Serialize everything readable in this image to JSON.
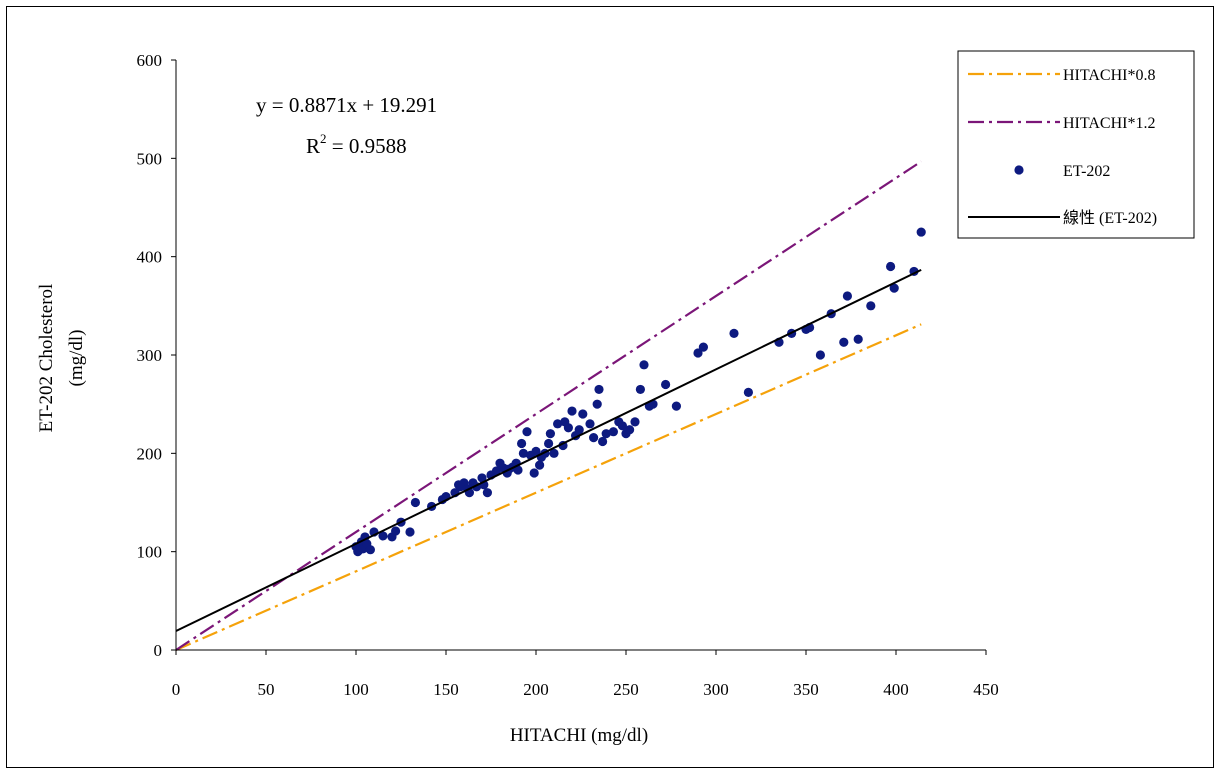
{
  "chart_data": {
    "type": "scatter",
    "title": "",
    "xlabel": "HITACHI (mg/dl)",
    "ylabel_line1": "ET-202 Cholesterol",
    "ylabel_line2": "(mg/dl)",
    "xlim": [
      0,
      450
    ],
    "ylim": [
      0,
      600
    ],
    "x_ticks": [
      0,
      50,
      100,
      150,
      200,
      250,
      300,
      350,
      400,
      450
    ],
    "y_ticks": [
      0,
      100,
      200,
      300,
      400,
      500,
      600
    ],
    "grid": false,
    "legend_position": "top-right",
    "equation": "y = 0.8871x + 19.291",
    "r_squared_prefix": "R",
    "r_squared_exp": "2",
    "r_squared_value": " = 0.9588",
    "series": [
      {
        "name": "HITACHI*0.8",
        "kind": "line",
        "style": "dash-dot",
        "color": "#f5a20a",
        "slope": 0.8,
        "intercept": 0,
        "x_range": [
          0,
          414
        ]
      },
      {
        "name": "HITACHI*1.2",
        "kind": "line",
        "style": "dash-dot",
        "color": "#7b1678",
        "slope": 1.2,
        "intercept": 0,
        "x_range": [
          0,
          414
        ]
      },
      {
        "name": "ET-202",
        "kind": "scatter",
        "color": "#0d1a80",
        "points": [
          [
            100,
            105
          ],
          [
            101,
            100
          ],
          [
            102,
            102
          ],
          [
            103,
            110
          ],
          [
            104,
            103
          ],
          [
            105,
            115
          ],
          [
            106,
            108
          ],
          [
            108,
            102
          ],
          [
            110,
            120
          ],
          [
            115,
            116
          ],
          [
            120,
            115
          ],
          [
            122,
            121
          ],
          [
            125,
            130
          ],
          [
            130,
            120
          ],
          [
            133,
            150
          ],
          [
            142,
            146
          ],
          [
            148,
            153
          ],
          [
            150,
            156
          ],
          [
            155,
            160
          ],
          [
            157,
            168
          ],
          [
            158,
            166
          ],
          [
            160,
            170
          ],
          [
            162,
            164
          ],
          [
            163,
            160
          ],
          [
            165,
            170
          ],
          [
            167,
            166
          ],
          [
            170,
            175
          ],
          [
            171,
            168
          ],
          [
            173,
            160
          ],
          [
            175,
            178
          ],
          [
            178,
            182
          ],
          [
            180,
            190
          ],
          [
            182,
            185
          ],
          [
            184,
            180
          ],
          [
            185,
            184
          ],
          [
            187,
            186
          ],
          [
            189,
            190
          ],
          [
            190,
            183
          ],
          [
            192,
            210
          ],
          [
            193,
            200
          ],
          [
            195,
            222
          ],
          [
            197,
            198
          ],
          [
            199,
            180
          ],
          [
            200,
            202
          ],
          [
            202,
            188
          ],
          [
            203,
            196
          ],
          [
            205,
            200
          ],
          [
            207,
            210
          ],
          [
            208,
            220
          ],
          [
            210,
            200
          ],
          [
            212,
            230
          ],
          [
            215,
            208
          ],
          [
            216,
            232
          ],
          [
            218,
            226
          ],
          [
            220,
            243
          ],
          [
            222,
            218
          ],
          [
            224,
            224
          ],
          [
            226,
            240
          ],
          [
            230,
            230
          ],
          [
            232,
            216
          ],
          [
            234,
            250
          ],
          [
            235,
            265
          ],
          [
            237,
            212
          ],
          [
            239,
            220
          ],
          [
            243,
            222
          ],
          [
            246,
            232
          ],
          [
            248,
            228
          ],
          [
            250,
            220
          ],
          [
            252,
            224
          ],
          [
            255,
            232
          ],
          [
            258,
            265
          ],
          [
            260,
            290
          ],
          [
            263,
            248
          ],
          [
            265,
            250
          ],
          [
            272,
            270
          ],
          [
            278,
            248
          ],
          [
            290,
            302
          ],
          [
            293,
            308
          ],
          [
            310,
            322
          ],
          [
            318,
            262
          ],
          [
            335,
            313
          ],
          [
            342,
            322
          ],
          [
            350,
            326
          ],
          [
            352,
            328
          ],
          [
            358,
            300
          ],
          [
            364,
            342
          ],
          [
            371,
            313
          ],
          [
            373,
            360
          ],
          [
            379,
            316
          ],
          [
            386,
            350
          ],
          [
            397,
            390
          ],
          [
            399,
            368
          ],
          [
            410,
            385
          ],
          [
            414,
            425
          ]
        ]
      },
      {
        "name": "線性 (ET-202)",
        "kind": "line",
        "style": "solid",
        "color": "#000000",
        "slope": 0.8871,
        "intercept": 19.291,
        "x_range": [
          0,
          414
        ]
      }
    ]
  }
}
